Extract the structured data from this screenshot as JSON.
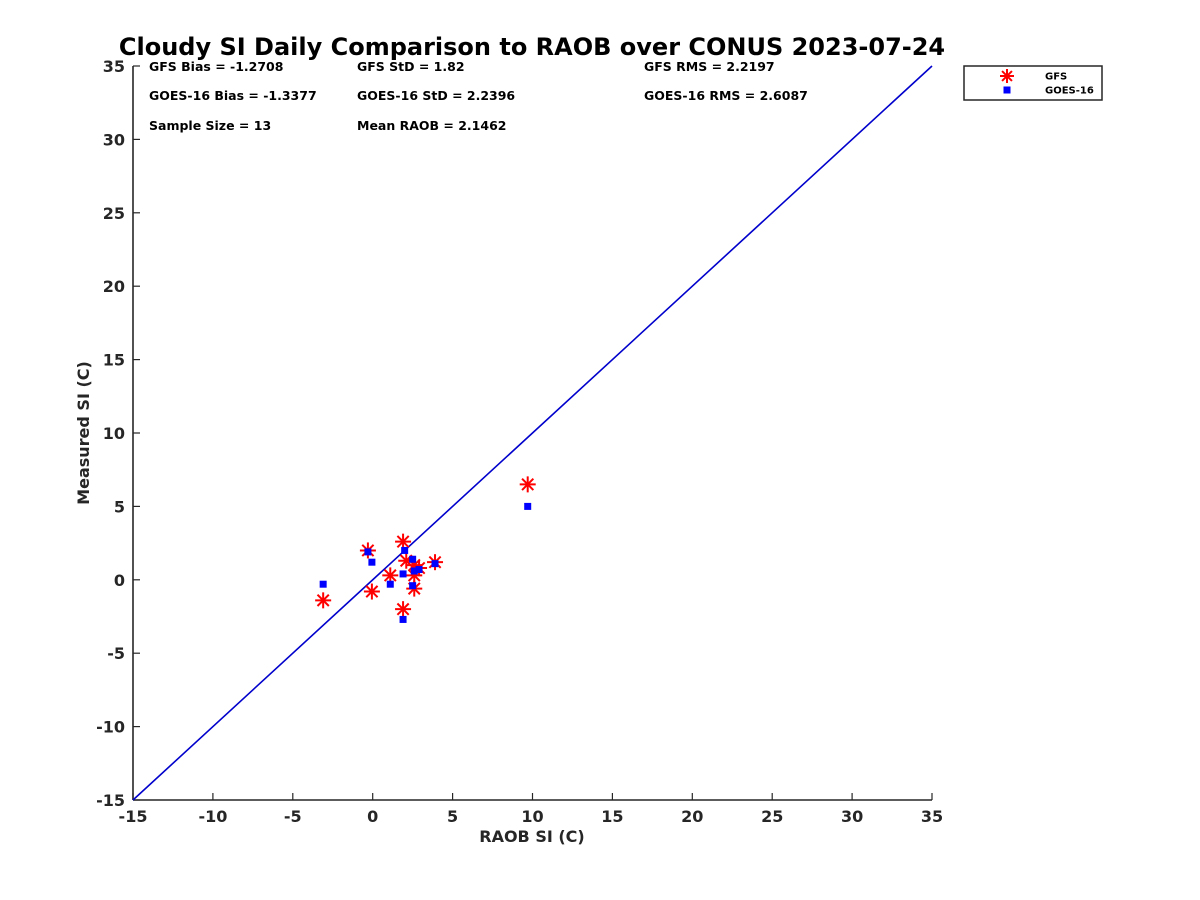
{
  "chart_data": {
    "type": "scatter",
    "title": "Cloudy SI Daily Comparison to RAOB over CONUS 2023-07-24",
    "xlabel": "RAOB SI (C)",
    "ylabel": "Measured SI (C)",
    "xlim": [
      -15,
      35
    ],
    "ylim": [
      -15,
      35
    ],
    "xticks": [
      -15,
      -10,
      -5,
      0,
      5,
      10,
      15,
      20,
      25,
      30,
      35
    ],
    "yticks": [
      -15,
      -10,
      -5,
      0,
      5,
      10,
      15,
      20,
      25,
      30,
      35
    ],
    "grid": false,
    "legend_position": "top-right outside",
    "reference_line": {
      "x": [
        -15,
        35
      ],
      "y": [
        -15,
        35
      ],
      "color": "#0000cc"
    },
    "stats": [
      [
        "GFS Bias = -1.2708",
        "GFS StD = 1.82",
        "GFS RMS = 2.2197"
      ],
      [
        "GOES-16 Bias = -1.3377",
        "GOES-16 StD = 2.2396",
        "GOES-16 RMS = 2.6087"
      ],
      [
        "Sample Size = 13",
        "Mean RAOB = 2.1462"
      ]
    ],
    "series": [
      {
        "name": "GFS",
        "marker": "asterisk",
        "color": "#ff0000",
        "x": [
          -3.1,
          -0.3,
          -0.05,
          1.1,
          1.9,
          1.9,
          2.1,
          2.6,
          2.6,
          2.6,
          2.9,
          3.9,
          9.7
        ],
        "y": [
          -1.4,
          2.0,
          -0.8,
          0.3,
          2.6,
          -2.0,
          1.3,
          1.0,
          0.3,
          -0.6,
          0.8,
          1.2,
          6.5
        ]
      },
      {
        "name": "GOES-16",
        "marker": "square",
        "color": "#0000ff",
        "x": [
          -3.1,
          -0.3,
          -0.05,
          1.1,
          1.9,
          1.9,
          2.0,
          2.5,
          2.5,
          2.6,
          2.9,
          3.9,
          9.7
        ],
        "y": [
          -0.3,
          1.9,
          1.2,
          -0.3,
          0.4,
          -2.7,
          2.0,
          1.4,
          -0.4,
          0.6,
          0.7,
          1.1,
          5.0
        ]
      }
    ]
  }
}
